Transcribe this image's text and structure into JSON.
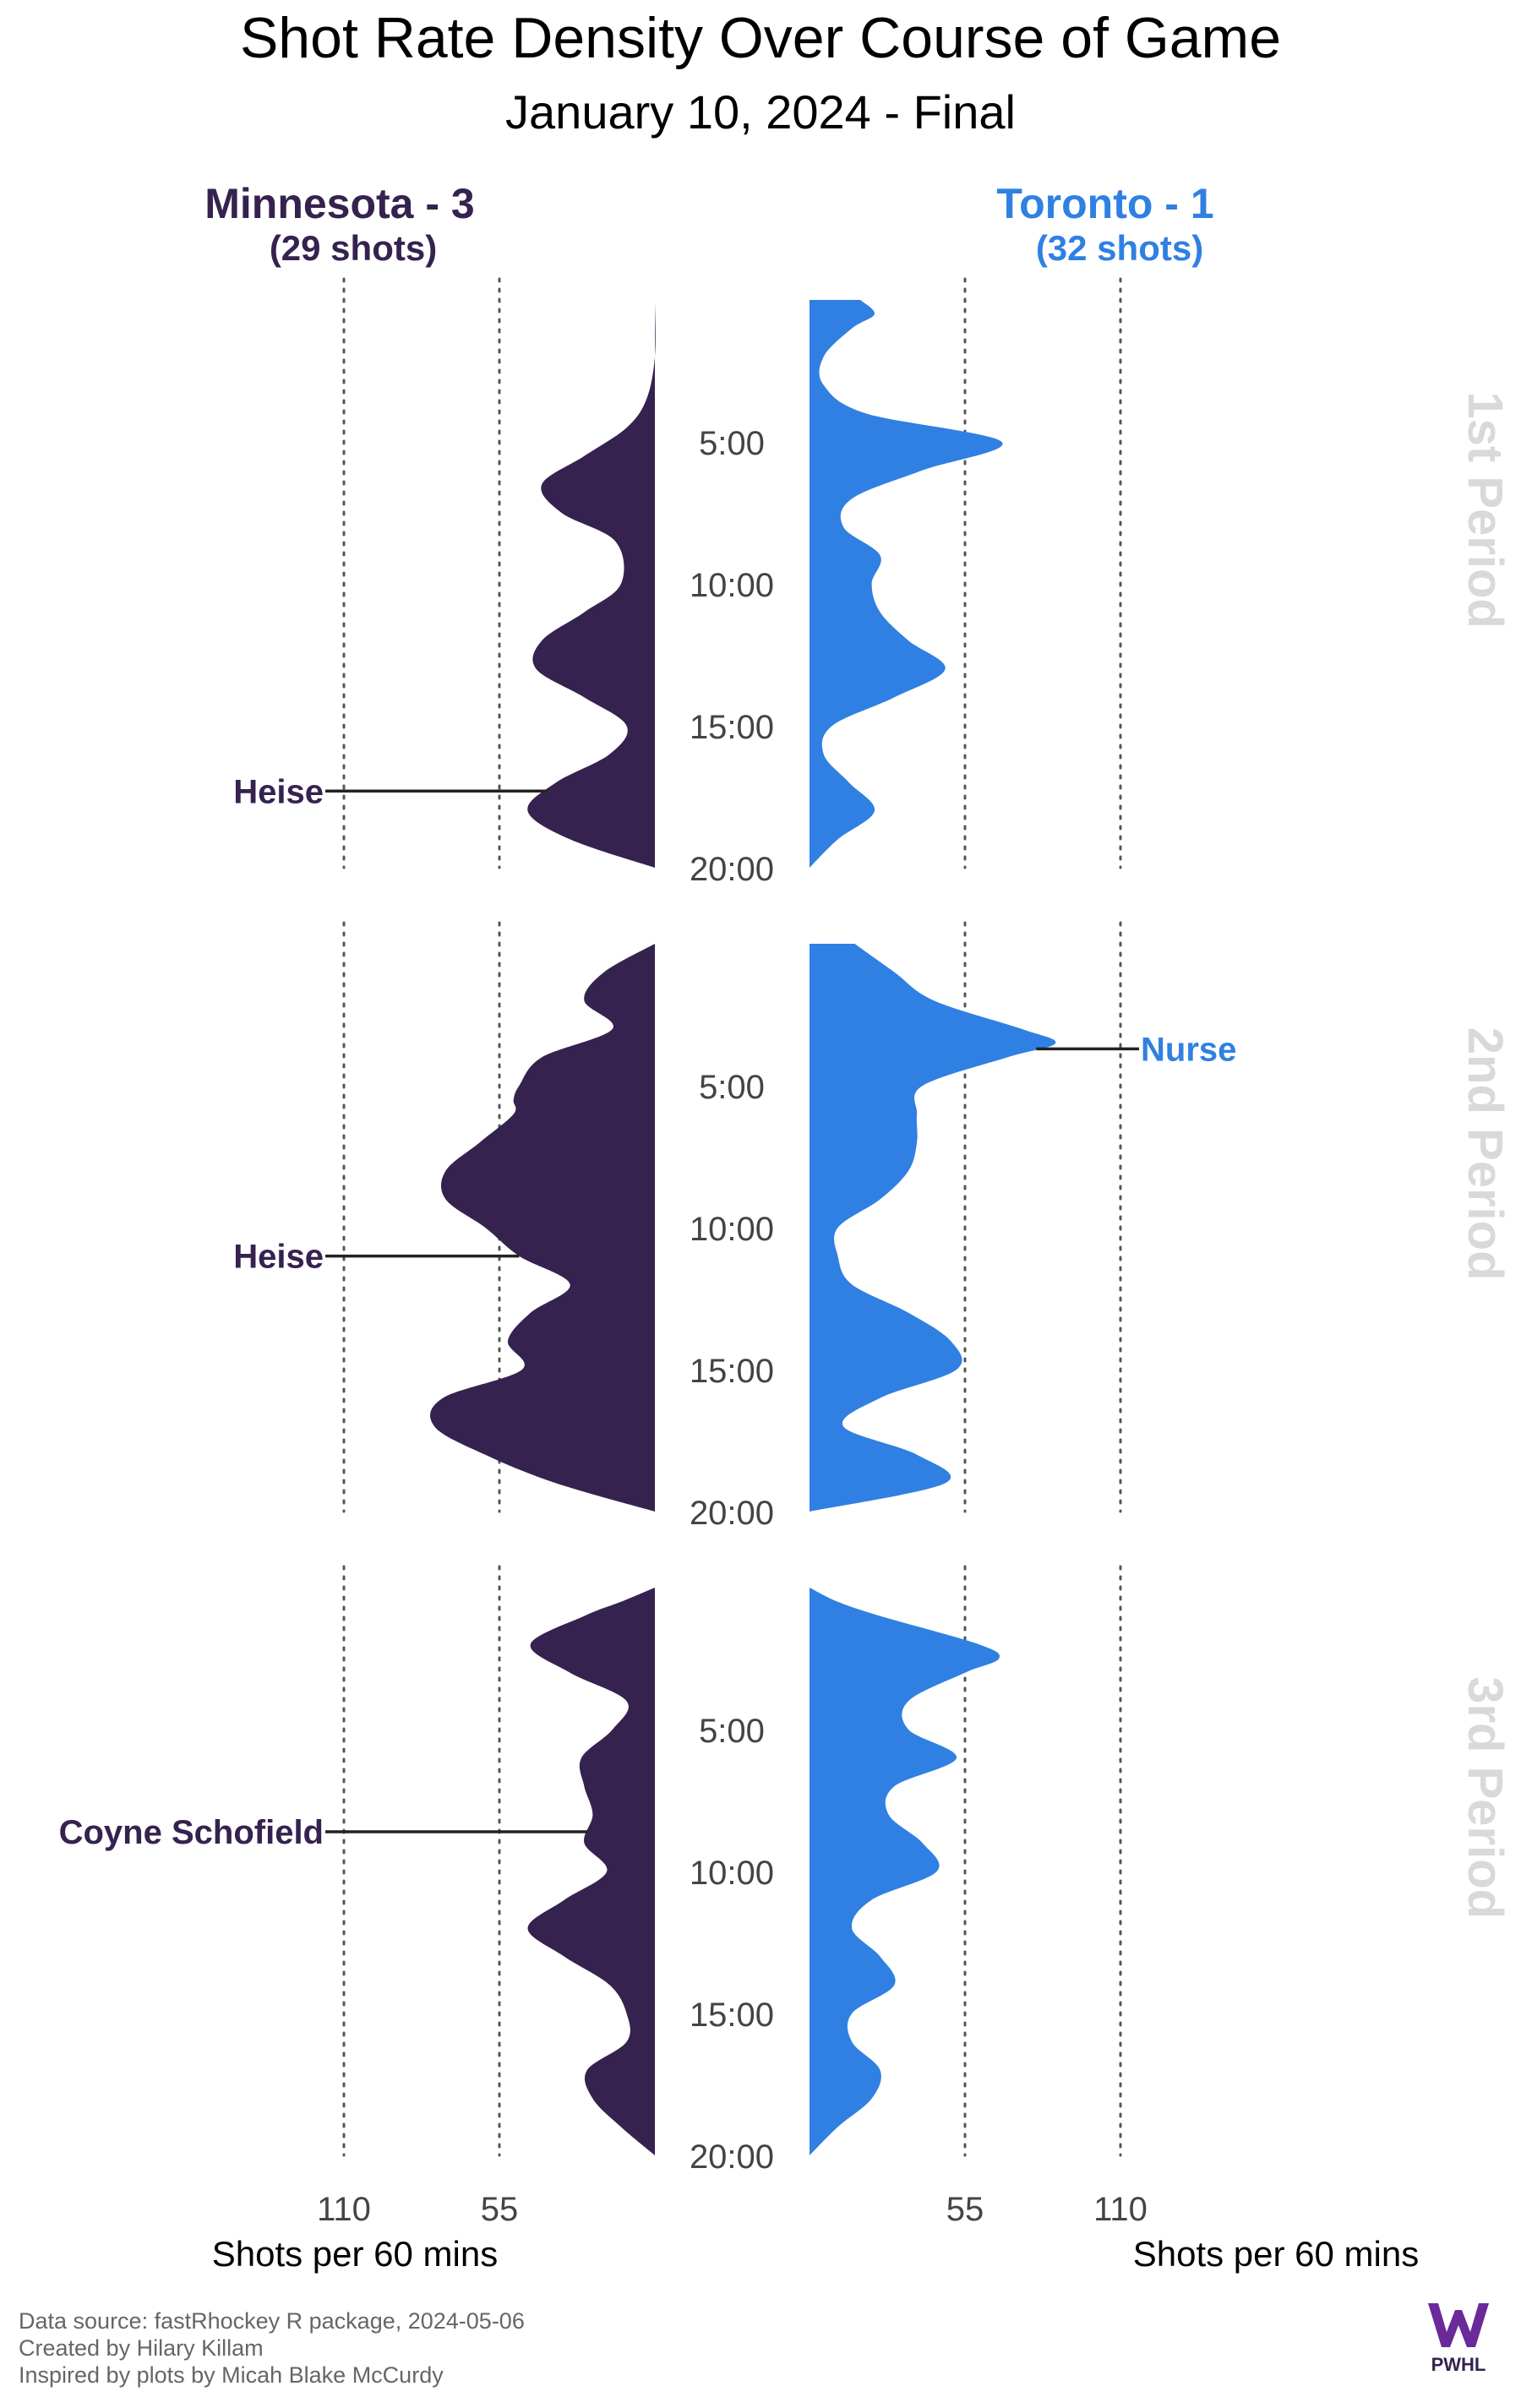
{
  "chart_data": {
    "type": "area",
    "title": "Shot Rate Density Over Course of Game",
    "subtitle": "January 10, 2024 - Final",
    "x_unit_label": "Shots per 60 mins",
    "x_ticks": [
      55,
      110
    ],
    "y_ticks": [
      "5:00",
      "10:00",
      "15:00",
      "20:00"
    ],
    "periods": [
      "1st Period",
      "2nd Period",
      "3rd Period"
    ],
    "series": [
      {
        "name": "Minnesota - 3",
        "sub": "(29 shots)",
        "side": "left",
        "color": "#35224f",
        "periods": [
          {
            "t": [
              0,
              2,
              3.5,
              4.5,
              5.5,
              6.5,
              7.5,
              8.5,
              10,
              11,
              12,
              13,
              14,
              15,
              16,
              17,
              18,
              19,
              20
            ],
            "rate": [
              0,
              0,
              3,
              10,
              25,
              40,
              33,
              14,
              12,
              25,
              40,
              42,
              25,
              10,
              16,
              35,
              45,
              30,
              0
            ]
          },
          {
            "t": [
              0,
              1,
              2,
              3,
              4,
              5,
              5.5,
              6,
              7,
              8,
              9,
              10,
              11,
              12,
              13,
              14,
              15,
              16,
              17,
              18,
              19,
              20
            ],
            "rate": [
              0,
              18,
              25,
              15,
              40,
              48,
              50,
              50,
              62,
              74,
              74,
              60,
              48,
              30,
              44,
              52,
              47,
              75,
              78,
              60,
              35,
              0
            ]
          },
          {
            "t": [
              0,
              0.5,
              1,
              2,
              3,
              4,
              5,
              6,
              7,
              8,
              9,
              10,
              11,
              12,
              13,
              14,
              15,
              16,
              17,
              18,
              19,
              20
            ],
            "rate": [
              0,
              12,
              25,
              44,
              30,
              10,
              15,
              26,
              25,
              22,
              25,
              17,
              32,
              45,
              32,
              16,
              10,
              10,
              24,
              22,
              12,
              0
            ]
          }
        ],
        "annotations": [
          {
            "label": "Heise",
            "period": 1,
            "time": 17.3
          },
          {
            "label": "Heise",
            "period": 2,
            "time": 11
          },
          {
            "label": "Coyne Schofield",
            "period": 3,
            "time": 8.6
          }
        ]
      },
      {
        "name": "Toronto - 1",
        "sub": "(32 shots)",
        "side": "right",
        "color": "#2f80e2",
        "periods": [
          {
            "t": [
              0,
              0.5,
              1,
              2,
              3,
              4,
              5,
              6,
              7,
              8,
              9,
              10,
              11,
              12,
              13,
              14,
              15,
              16,
              17,
              18,
              19,
              20
            ],
            "rate": [
              18,
              23,
              15,
              5,
              5,
              20,
              68,
              40,
              15,
              12,
              25,
              22,
              25,
              35,
              48,
              30,
              8,
              5,
              14,
              23,
              10,
              0
            ]
          },
          {
            "t": [
              0,
              1,
              2,
              3,
              3.5,
              4,
              5,
              6,
              7,
              8,
              9,
              10,
              11,
              12,
              13,
              14,
              15,
              16,
              17,
              18,
              19,
              20
            ],
            "rate": [
              16,
              30,
              44,
              75,
              87,
              70,
              40,
              38,
              38,
              35,
              25,
              10,
              10,
              15,
              35,
              50,
              52,
              25,
              12,
              38,
              48,
              0
            ]
          },
          {
            "t": [
              0,
              0.5,
              1,
              2,
              2.5,
              3,
              4,
              5,
              6,
              7,
              8,
              9,
              10,
              11,
              12,
              13,
              14,
              15,
              16,
              17,
              18,
              19,
              20
            ],
            "rate": [
              0,
              10,
              25,
              60,
              67,
              55,
              35,
              35,
              52,
              30,
              28,
              40,
              45,
              22,
              15,
              25,
              30,
              15,
              15,
              25,
              22,
              10,
              0
            ]
          }
        ],
        "annotations": [
          {
            "label": "Nurse",
            "period": 2,
            "time": 3.7
          }
        ]
      }
    ]
  },
  "captions": [
    "Data source: fastRhockey R package, 2024-05-06",
    "Created by Hilary Killam",
    "Inspired by plots by Micah Blake McCurdy"
  ],
  "logo_text": "PWHL",
  "colors": {
    "minnesota": "#35224f",
    "toronto": "#2f80e2",
    "period_label": "#d9d9d9",
    "grid": "#555555"
  }
}
